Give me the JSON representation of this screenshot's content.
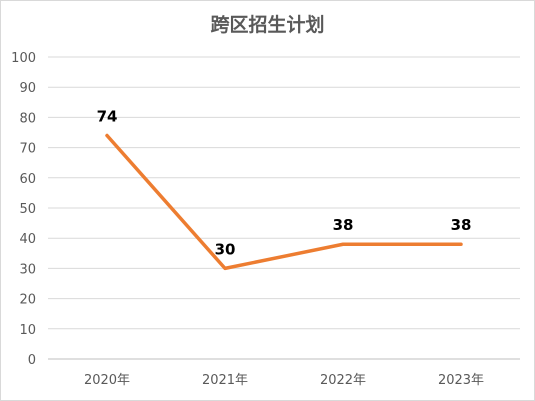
{
  "chart_data": {
    "type": "line",
    "title": "跨区招生计划",
    "categories": [
      "2020年",
      "2021年",
      "2022年",
      "2023年"
    ],
    "series": [
      {
        "values": [
          74,
          30,
          38,
          38
        ]
      }
    ],
    "ylim": [
      0,
      100
    ],
    "yticks": [
      "0",
      "10",
      "20",
      "30",
      "40",
      "50",
      "60",
      "70",
      "80",
      "90",
      "100"
    ],
    "data_labels": [
      "74",
      "30",
      "38",
      "38"
    ],
    "grid": true,
    "legend": "none",
    "line_color": "#ED7D31",
    "grid_color": "#d9d9d9",
    "axis_color": "#bfbfbf"
  }
}
